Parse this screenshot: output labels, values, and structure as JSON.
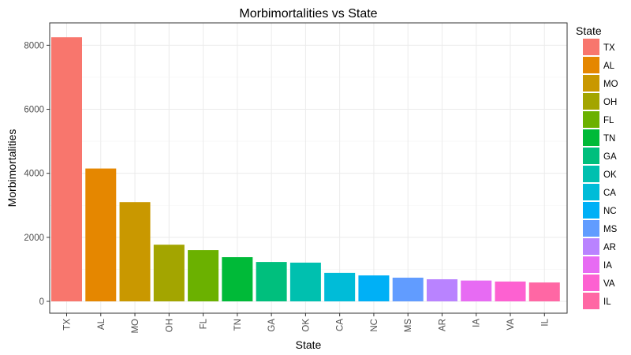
{
  "chart_data": {
    "type": "bar",
    "title": "Morbimortalities vs State",
    "xlabel": "State",
    "ylabel": "Morbimortalities",
    "categories": [
      "TX",
      "AL",
      "MO",
      "OH",
      "FL",
      "TN",
      "GA",
      "OK",
      "CA",
      "NC",
      "MS",
      "AR",
      "IA",
      "VA",
      "IL"
    ],
    "values": [
      8250,
      4150,
      3100,
      1770,
      1600,
      1380,
      1230,
      1210,
      890,
      810,
      740,
      690,
      650,
      620,
      590
    ],
    "colors": [
      "#F8766D",
      "#E58700",
      "#C99800",
      "#A3A500",
      "#6BB100",
      "#00BA38",
      "#00BF7D",
      "#00C0AF",
      "#00BCD8",
      "#00B0F6",
      "#619CFF",
      "#B983FF",
      "#E76BF3",
      "#FD61D1",
      "#FF67A4"
    ],
    "ylim": [
      0,
      8600
    ],
    "yticks": [
      0,
      2000,
      4000,
      6000,
      8000
    ],
    "grid": true,
    "legend": {
      "title": "State",
      "placement": "right"
    }
  }
}
